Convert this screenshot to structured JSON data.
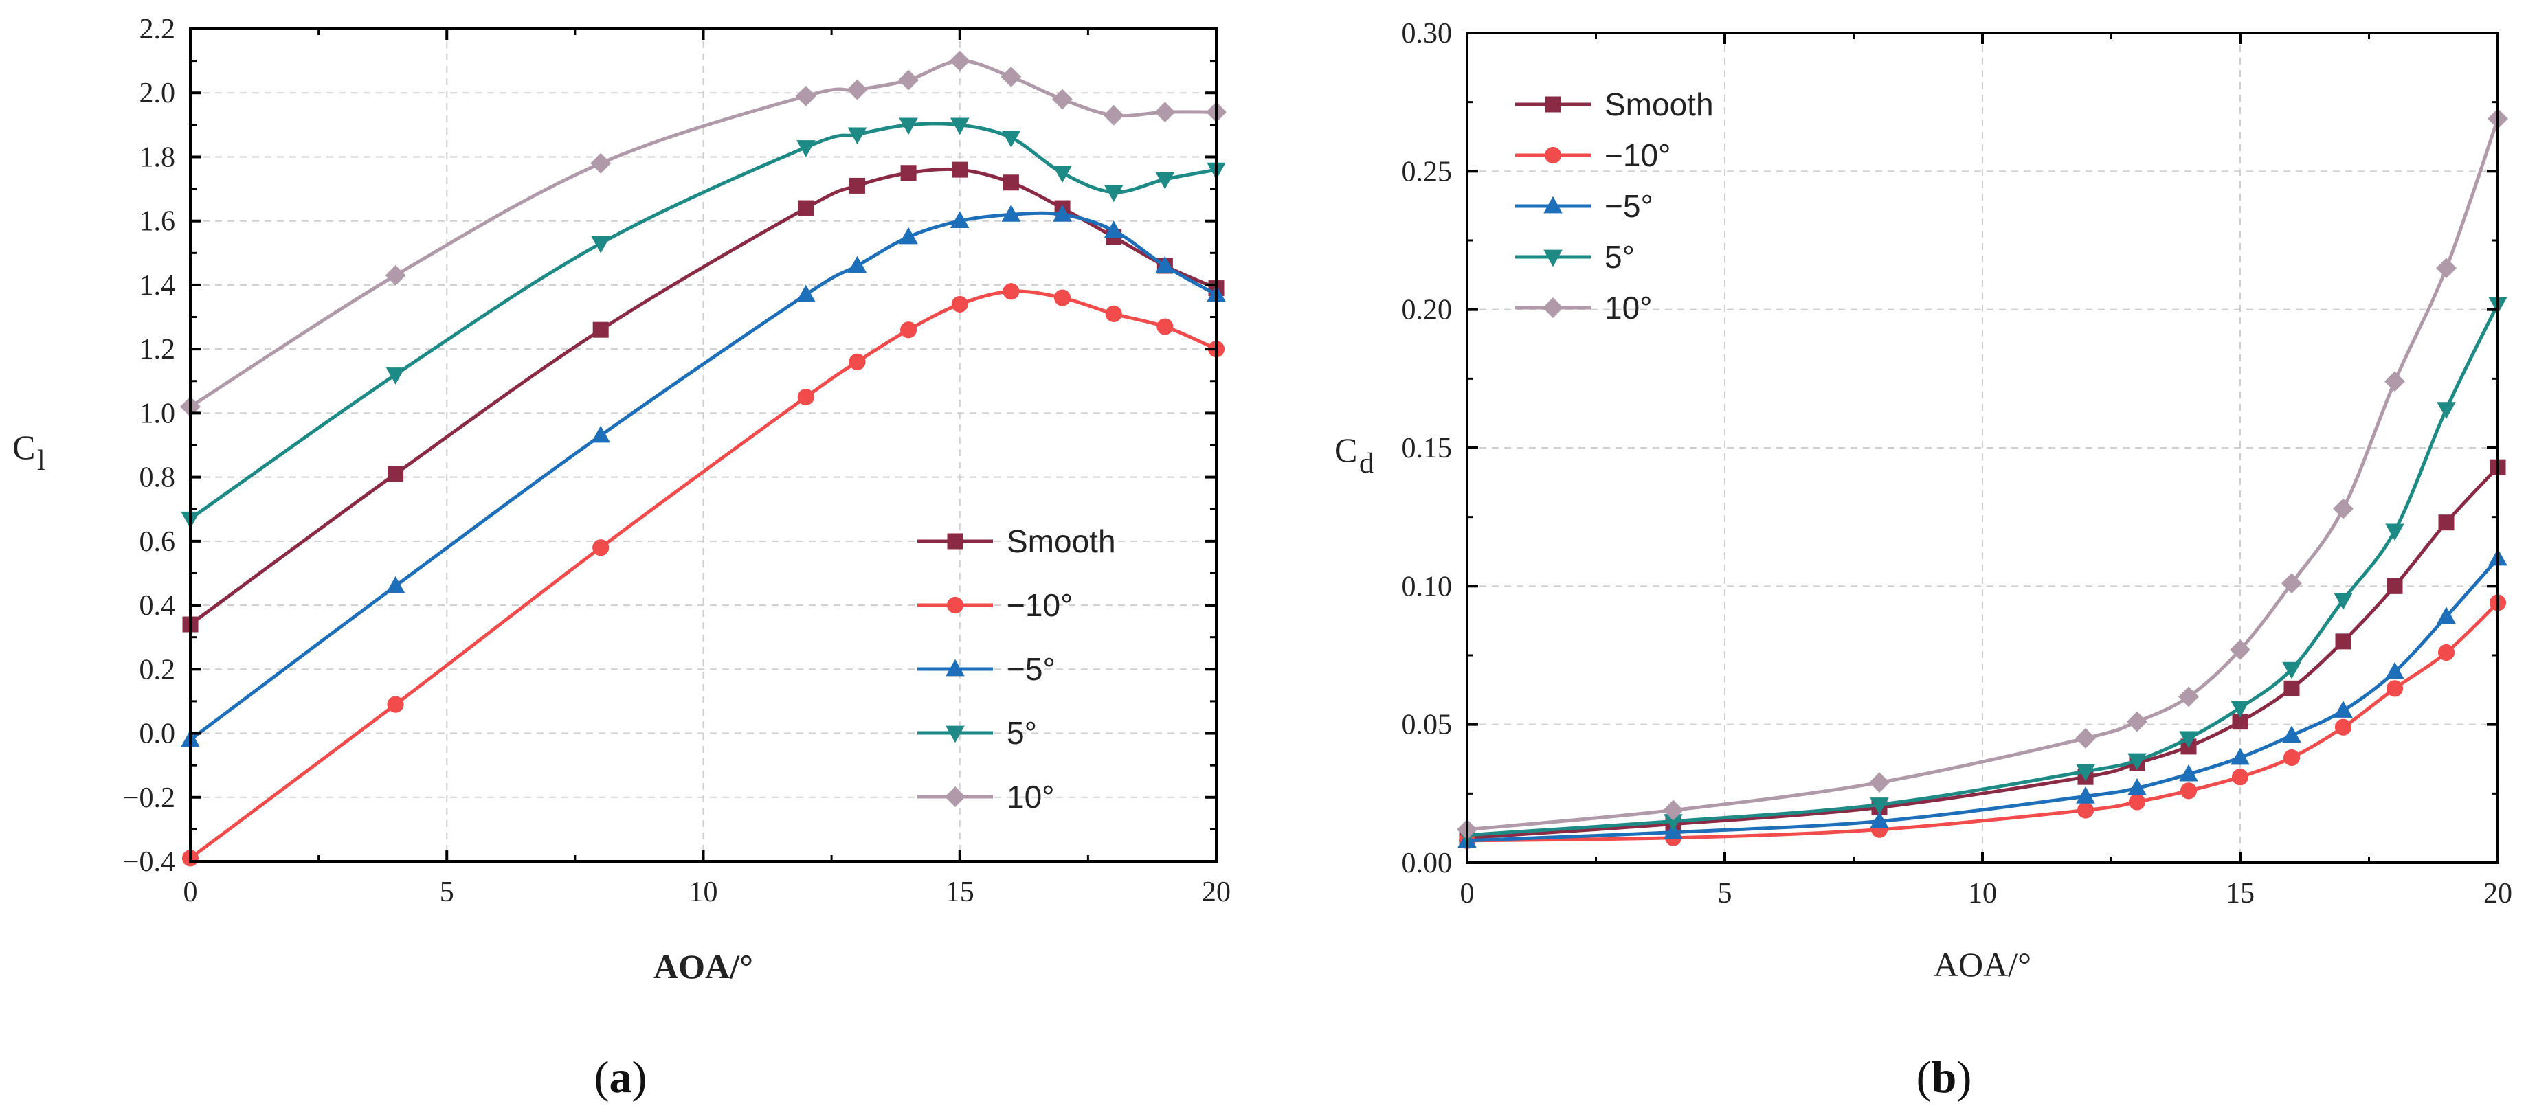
{
  "chart_data": [
    {
      "type": "line",
      "panel_label": "(a)",
      "panel_letter": "a",
      "xlabel": "AOA/°",
      "ylabel": "C",
      "ylabel_sub": "l",
      "xlim": [
        0,
        20
      ],
      "ylim": [
        -0.4,
        2.2
      ],
      "xticks": [
        "0",
        "5",
        "10",
        "15",
        "20"
      ],
      "yticks": [
        "−0.4",
        "−0.2",
        "0.0",
        "0.2",
        "0.4",
        "0.6",
        "0.8",
        "1.0",
        "1.2",
        "1.4",
        "1.6",
        "1.8",
        "2.0",
        "2.2"
      ],
      "grid": true,
      "legend_position": "center-right",
      "x": [
        0,
        4,
        8,
        12,
        13,
        14,
        15,
        16,
        17,
        18,
        19,
        20
      ],
      "series": [
        {
          "name": "Smooth",
          "marker": "square",
          "color": "#8b2a45",
          "values": [
            0.34,
            0.81,
            1.26,
            1.64,
            1.71,
            1.75,
            1.76,
            1.72,
            1.64,
            1.55,
            1.46,
            1.39
          ]
        },
        {
          "name": "−10°",
          "marker": "circle",
          "color": "#f24b4b",
          "values": [
            -0.39,
            0.09,
            0.58,
            1.05,
            1.16,
            1.26,
            1.34,
            1.38,
            1.36,
            1.31,
            1.27,
            1.2
          ]
        },
        {
          "name": "−5°",
          "marker": "triangle-up",
          "color": "#1e6fba",
          "values": [
            -0.02,
            0.46,
            0.93,
            1.37,
            1.46,
            1.55,
            1.6,
            1.62,
            1.62,
            1.57,
            1.46,
            1.37
          ]
        },
        {
          "name": "5°",
          "marker": "triangle-down",
          "color": "#1d8a86",
          "values": [
            0.67,
            1.12,
            1.53,
            1.83,
            1.87,
            1.9,
            1.9,
            1.86,
            1.75,
            1.69,
            1.73,
            1.76
          ]
        },
        {
          "name": "10°",
          "marker": "diamond",
          "color": "#b09aa9",
          "values": [
            1.02,
            1.43,
            1.78,
            1.99,
            2.01,
            2.04,
            2.1,
            2.05,
            1.98,
            1.93,
            1.94,
            1.94
          ]
        }
      ]
    },
    {
      "type": "line",
      "panel_label": "(b)",
      "panel_letter": "b",
      "xlabel": "AOA/°",
      "ylabel": "C",
      "ylabel_sub": "d",
      "xlim": [
        0,
        20
      ],
      "ylim": [
        0,
        0.3
      ],
      "xticks": [
        "0",
        "5",
        "10",
        "15",
        "20"
      ],
      "yticks": [
        "0.00",
        "0.05",
        "0.10",
        "0.15",
        "0.20",
        "0.25",
        "0.30"
      ],
      "grid": true,
      "legend_position": "top-left",
      "x": [
        0,
        4,
        8,
        12,
        13,
        14,
        15,
        16,
        17,
        18,
        19,
        20
      ],
      "series": [
        {
          "name": "Smooth",
          "marker": "square",
          "color": "#8b2a45",
          "values": [
            0.009,
            0.014,
            0.02,
            0.031,
            0.036,
            0.042,
            0.051,
            0.063,
            0.08,
            0.1,
            0.123,
            0.143
          ]
        },
        {
          "name": "−10°",
          "marker": "circle",
          "color": "#f24b4b",
          "values": [
            0.008,
            0.009,
            0.012,
            0.019,
            0.022,
            0.026,
            0.031,
            0.038,
            0.049,
            0.063,
            0.076,
            0.094
          ]
        },
        {
          "name": "−5°",
          "marker": "triangle-up",
          "color": "#1e6fba",
          "values": [
            0.008,
            0.011,
            0.015,
            0.024,
            0.027,
            0.032,
            0.038,
            0.046,
            0.055,
            0.069,
            0.089,
            0.11
          ]
        },
        {
          "name": "5°",
          "marker": "triangle-down",
          "color": "#1d8a86",
          "values": [
            0.01,
            0.015,
            0.021,
            0.033,
            0.037,
            0.045,
            0.056,
            0.07,
            0.095,
            0.12,
            0.164,
            0.202
          ]
        },
        {
          "name": "10°",
          "marker": "diamond",
          "color": "#b09aa9",
          "values": [
            0.012,
            0.019,
            0.029,
            0.045,
            0.051,
            0.06,
            0.077,
            0.101,
            0.128,
            0.174,
            0.215,
            0.269
          ]
        }
      ]
    }
  ]
}
